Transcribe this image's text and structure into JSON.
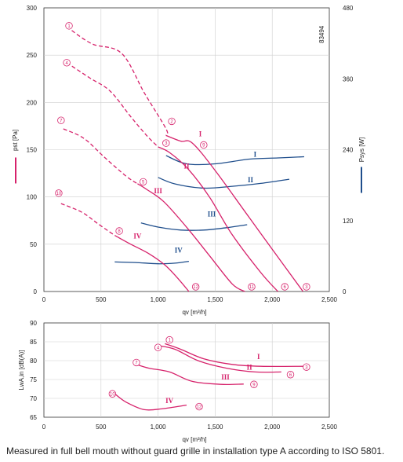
{
  "image_code": "83494",
  "caption": "Measured in full bell mouth without guard grille in installation type A according to ISO 5801.",
  "colors": {
    "pressure": "#d6226b",
    "power": "#1f4e8c",
    "grid": "#cfcfcf",
    "axis": "#333333"
  },
  "chart_data": [
    {
      "type": "line",
      "title": "",
      "xlabel": "qv [m³/h]",
      "ylabel": "pst [Pa]",
      "y2label": "Psys [W]",
      "xlim": [
        0,
        2500
      ],
      "ylim": [
        0,
        300
      ],
      "y2lim": [
        0,
        480
      ],
      "xticks": [
        "0",
        "500",
        "1,000",
        "1,500",
        "2,000",
        "2,500"
      ],
      "yticks": [
        "0",
        "50",
        "100",
        "150",
        "200",
        "250",
        "300"
      ],
      "y2ticks": [
        "0",
        "120",
        "240",
        "360",
        "480"
      ],
      "grid": true,
      "pressure_curves": [
        {
          "name": "I",
          "dashed": [
            [
              200,
              280
            ],
            [
              420,
              262
            ],
            [
              680,
              252
            ],
            [
              880,
              210
            ],
            [
              1070,
              172
            ],
            [
              1070,
              165
            ]
          ],
          "solid": [
            [
              1070,
              165
            ],
            [
              1200,
              159
            ],
            [
              1300,
              157
            ],
            [
              1500,
              128
            ],
            [
              1800,
              78
            ],
            [
              2100,
              28
            ],
            [
              2270,
              0
            ]
          ]
        },
        {
          "name": "II",
          "dashed": [
            [
              200,
              242
            ],
            [
              400,
              226
            ],
            [
              580,
              212
            ],
            [
              760,
              185
            ],
            [
              900,
              165
            ],
            [
              1000,
              153
            ]
          ],
          "solid": [
            [
              1000,
              153
            ],
            [
              1100,
              147
            ],
            [
              1260,
              130
            ],
            [
              1450,
              100
            ],
            [
              1650,
              60
            ],
            [
              1900,
              20
            ],
            [
              2050,
              0
            ]
          ]
        },
        {
          "name": "III",
          "dashed": [
            [
              170,
              172
            ],
            [
              350,
              162
            ],
            [
              530,
              142
            ],
            [
              720,
              122
            ],
            [
              820,
              114
            ]
          ],
          "solid": [
            [
              820,
              114
            ],
            [
              900,
              108
            ],
            [
              1050,
              95
            ],
            [
              1250,
              68
            ],
            [
              1450,
              38
            ],
            [
              1650,
              8
            ],
            [
              1760,
              0
            ]
          ]
        },
        {
          "name": "IV",
          "dashed": [
            [
              150,
              93
            ],
            [
              330,
              84
            ],
            [
              470,
              72
            ],
            [
              600,
              61
            ],
            [
              640,
              58
            ]
          ],
          "solid": [
            [
              640,
              58
            ],
            [
              760,
              50
            ],
            [
              920,
              40
            ],
            [
              1060,
              28
            ],
            [
              1180,
              13
            ],
            [
              1270,
              0
            ]
          ]
        }
      ],
      "power_curves": [
        {
          "name": "I",
          "points": [
            [
              1070,
              230
            ],
            [
              1250,
              216
            ],
            [
              1500,
              216
            ],
            [
              1800,
              224
            ],
            [
              2050,
              226
            ],
            [
              2280,
              228
            ]
          ]
        },
        {
          "name": "II",
          "points": [
            [
              1000,
              193
            ],
            [
              1150,
              182
            ],
            [
              1400,
              175
            ],
            [
              1650,
              178
            ],
            [
              1900,
              183
            ],
            [
              2150,
              190
            ]
          ]
        },
        {
          "name": "III",
          "points": [
            [
              850,
              116
            ],
            [
              1000,
              109
            ],
            [
              1200,
              104
            ],
            [
              1400,
              104
            ],
            [
              1600,
              108
            ],
            [
              1780,
              113
            ]
          ]
        },
        {
          "name": "IV",
          "points": [
            [
              620,
              50
            ],
            [
              800,
              49
            ],
            [
              1000,
              47
            ],
            [
              1150,
              48
            ],
            [
              1270,
              51
            ]
          ]
        }
      ],
      "curve_labels": [
        {
          "text": "I",
          "x": 1370,
          "y": 164,
          "axis": "y",
          "color": "pressure"
        },
        {
          "text": "II",
          "x": 1250,
          "y": 130,
          "axis": "y",
          "color": "pressure"
        },
        {
          "text": "III",
          "x": 1000,
          "y": 104,
          "axis": "y",
          "color": "pressure"
        },
        {
          "text": "IV",
          "x": 820,
          "y": 56,
          "axis": "y",
          "color": "pressure"
        },
        {
          "text": "I",
          "x": 1850,
          "y": 228,
          "axis": "y2",
          "color": "power"
        },
        {
          "text": "II",
          "x": 1810,
          "y": 185,
          "axis": "y2",
          "color": "power"
        },
        {
          "text": "III",
          "x": 1470,
          "y": 127,
          "axis": "y2",
          "color": "power"
        },
        {
          "text": "IV",
          "x": 1180,
          "y": 66,
          "axis": "y2",
          "color": "power"
        }
      ],
      "operating_points": [
        {
          "label": "1",
          "x": 220,
          "y": 281
        },
        {
          "label": "4",
          "x": 200,
          "y": 242
        },
        {
          "label": "7",
          "x": 150,
          "y": 181
        },
        {
          "label": "10",
          "x": 130,
          "y": 104
        },
        {
          "label": "2",
          "x": 1120,
          "y": 180
        },
        {
          "label": "3",
          "x": 1070,
          "y": 157
        },
        {
          "label": "5",
          "x": 870,
          "y": 116
        },
        {
          "label": "8",
          "x": 660,
          "y": 64
        },
        {
          "label": "9",
          "x": 1400,
          "y": 155
        },
        {
          "label": "12",
          "x": 1330,
          "y": 5
        },
        {
          "label": "11",
          "x": 1820,
          "y": 5
        },
        {
          "label": "6",
          "x": 2110,
          "y": 5
        },
        {
          "label": "3",
          "x": 2300,
          "y": 5
        }
      ]
    },
    {
      "type": "line",
      "title": "",
      "xlabel": "qv [m³/h]",
      "ylabel": "LwA,in [dB(A)]",
      "xlim": [
        0,
        2500
      ],
      "ylim": [
        65,
        90
      ],
      "xticks": [
        "0",
        "500",
        "1,000",
        "1,500",
        "2,000",
        "2,500"
      ],
      "yticks": [
        "65",
        "70",
        "75",
        "80",
        "85",
        "90"
      ],
      "grid": true,
      "series": [
        {
          "name": "I",
          "points": [
            [
              1060,
              84.5
            ],
            [
              1200,
              83
            ],
            [
              1400,
              80.5
            ],
            [
              1650,
              79
            ],
            [
              1900,
              78.5
            ],
            [
              2280,
              78.5
            ]
          ]
        },
        {
          "name": "II",
          "points": [
            [
              1000,
              84
            ],
            [
              1150,
              83
            ],
            [
              1350,
              80
            ],
            [
              1600,
              78
            ],
            [
              1850,
              77
            ],
            [
              2080,
              77
            ]
          ]
        },
        {
          "name": "III",
          "points": [
            [
              810,
              79
            ],
            [
              920,
              78
            ],
            [
              1100,
              77
            ],
            [
              1300,
              74.5
            ],
            [
              1550,
              73.7
            ],
            [
              1750,
              73.8
            ]
          ]
        },
        {
          "name": "IV",
          "points": [
            [
              630,
              71
            ],
            [
              720,
              69
            ],
            [
              880,
              67
            ],
            [
              1050,
              67.3
            ],
            [
              1250,
              68.2
            ]
          ]
        }
      ],
      "curve_labels": [
        {
          "text": "I",
          "x": 1880,
          "y": 80.4
        },
        {
          "text": "II",
          "x": 1800,
          "y": 77.6
        },
        {
          "text": "III",
          "x": 1590,
          "y": 75
        },
        {
          "text": "IV",
          "x": 1100,
          "y": 68.8
        }
      ],
      "operating_points": [
        {
          "label": "1",
          "x": 1100,
          "y": 85.5
        },
        {
          "label": "4",
          "x": 1000,
          "y": 83.5
        },
        {
          "label": "7",
          "x": 810,
          "y": 79.5
        },
        {
          "label": "10",
          "x": 600,
          "y": 71.2
        },
        {
          "label": "3",
          "x": 2300,
          "y": 78.3
        },
        {
          "label": "6",
          "x": 2160,
          "y": 76.3
        },
        {
          "label": "9",
          "x": 1840,
          "y": 73.7
        },
        {
          "label": "12",
          "x": 1360,
          "y": 67.8
        }
      ]
    }
  ]
}
